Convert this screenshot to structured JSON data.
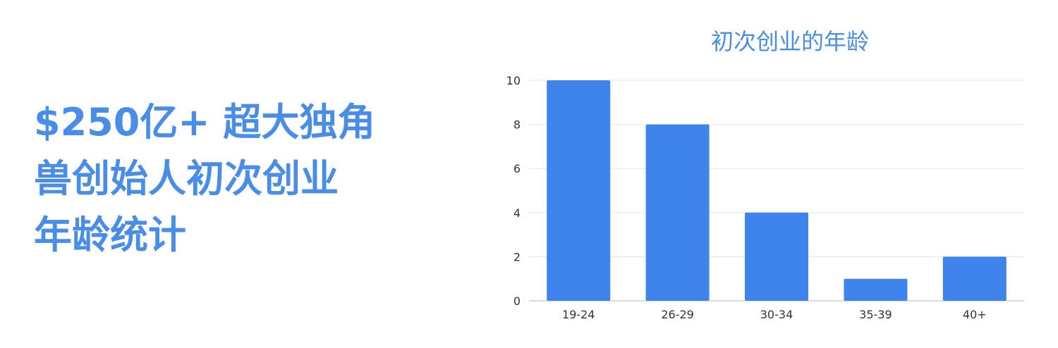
{
  "headline": {
    "lines": [
      "$250亿+ 超大独角",
      "兽创始人初次创业",
      "年龄统计"
    ]
  },
  "colors": {
    "accent": "#4a8de6",
    "bar": "#3f83ec",
    "grid": "#e6e6e6",
    "axis": "#cfcfcf"
  },
  "chart_data": {
    "type": "bar",
    "title": "初次创业的年龄",
    "xlabel": "",
    "ylabel": "",
    "categories": [
      "19-24",
      "26-29",
      "30-34",
      "35-39",
      "40+"
    ],
    "values": [
      10,
      8,
      4,
      1,
      2
    ],
    "ylim": [
      0,
      10
    ],
    "yticks": [
      0,
      2,
      4,
      6,
      8,
      10
    ],
    "grid": true,
    "legend": "none"
  }
}
